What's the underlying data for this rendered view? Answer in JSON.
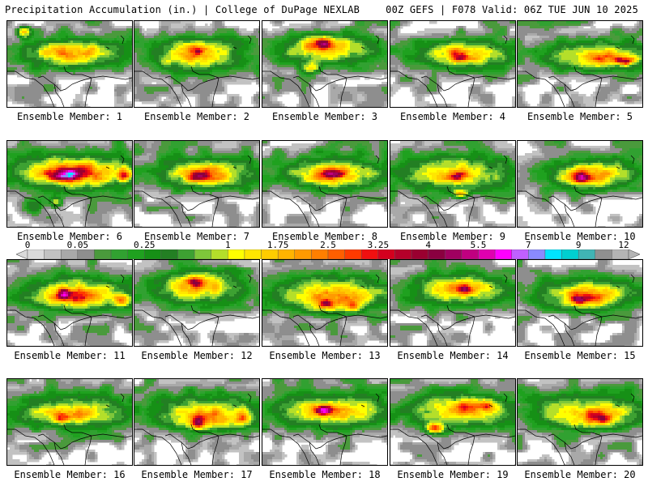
{
  "header": {
    "title": "Precipitation Accumulation (in.) | College of DuPage NEXLAB",
    "run_info": "00Z GEFS | F078 Valid: 06Z TUE JUN 10 2025"
  },
  "panel_label_prefix": "Ensemble Member: ",
  "members": [
    {
      "id": 1,
      "rain": [
        [
          0.55,
          0.35,
          0.42,
          0.16,
          0.5
        ],
        [
          0.5,
          0.38,
          0.32,
          0.12,
          0.78
        ],
        [
          0.45,
          0.36,
          0.17,
          0.08,
          1.3
        ],
        [
          0.13,
          0.12,
          0.04,
          0.05,
          1.9
        ],
        [
          0.68,
          0.3,
          0.04,
          0.04,
          1.1
        ]
      ]
    },
    {
      "id": 2,
      "rain": [
        [
          0.52,
          0.4,
          0.4,
          0.18,
          0.5
        ],
        [
          0.48,
          0.35,
          0.26,
          0.14,
          0.78
        ],
        [
          0.5,
          0.36,
          0.13,
          0.1,
          1.4
        ],
        [
          0.5,
          0.32,
          0.05,
          0.05,
          2.0
        ],
        [
          0.25,
          0.48,
          0.05,
          0.05,
          0.6
        ]
      ]
    },
    {
      "id": 3,
      "rain": [
        [
          0.55,
          0.35,
          0.42,
          0.16,
          0.5
        ],
        [
          0.48,
          0.3,
          0.28,
          0.13,
          0.85
        ],
        [
          0.46,
          0.26,
          0.15,
          0.08,
          1.6
        ],
        [
          0.48,
          0.25,
          0.06,
          0.05,
          2.7
        ],
        [
          0.38,
          0.52,
          0.06,
          0.06,
          1.4
        ]
      ]
    },
    {
      "id": 4,
      "rain": [
        [
          0.6,
          0.38,
          0.42,
          0.16,
          0.5
        ],
        [
          0.6,
          0.38,
          0.3,
          0.12,
          0.75
        ],
        [
          0.55,
          0.36,
          0.14,
          0.08,
          1.25
        ],
        [
          0.55,
          0.42,
          0.05,
          0.04,
          1.9
        ]
      ]
    },
    {
      "id": 5,
      "rain": [
        [
          0.62,
          0.38,
          0.42,
          0.16,
          0.5
        ],
        [
          0.66,
          0.4,
          0.3,
          0.12,
          0.8
        ],
        [
          0.7,
          0.42,
          0.16,
          0.07,
          1.45
        ],
        [
          0.85,
          0.45,
          0.07,
          0.04,
          2.6
        ]
      ]
    },
    {
      "id": 6,
      "rain": [
        [
          0.55,
          0.35,
          0.5,
          0.2,
          0.55
        ],
        [
          0.55,
          0.35,
          0.38,
          0.16,
          0.9
        ],
        [
          0.52,
          0.36,
          0.24,
          0.1,
          1.9
        ],
        [
          0.45,
          0.38,
          0.12,
          0.06,
          3.8
        ],
        [
          0.92,
          0.38,
          0.05,
          0.06,
          2.9
        ],
        [
          0.2,
          0.75,
          0.08,
          0.08,
          0.55
        ],
        [
          0.38,
          0.7,
          0.04,
          0.05,
          1.1
        ]
      ]
    },
    {
      "id": 7,
      "rain": [
        [
          0.6,
          0.35,
          0.42,
          0.17,
          0.5
        ],
        [
          0.58,
          0.38,
          0.3,
          0.13,
          0.8
        ],
        [
          0.56,
          0.38,
          0.16,
          0.08,
          1.5
        ],
        [
          0.5,
          0.4,
          0.06,
          0.05,
          2.0
        ]
      ]
    },
    {
      "id": 8,
      "rain": [
        [
          0.6,
          0.35,
          0.42,
          0.18,
          0.5
        ],
        [
          0.55,
          0.38,
          0.3,
          0.13,
          0.82
        ],
        [
          0.55,
          0.38,
          0.16,
          0.08,
          1.6
        ],
        [
          0.55,
          0.38,
          0.07,
          0.05,
          2.5
        ]
      ]
    },
    {
      "id": 9,
      "rain": [
        [
          0.5,
          0.35,
          0.45,
          0.2,
          0.5
        ],
        [
          0.5,
          0.36,
          0.32,
          0.14,
          0.8
        ],
        [
          0.52,
          0.4,
          0.14,
          0.08,
          1.4
        ],
        [
          0.52,
          0.4,
          0.05,
          0.04,
          2.7
        ],
        [
          0.55,
          0.6,
          0.05,
          0.04,
          1.6
        ]
      ]
    },
    {
      "id": 10,
      "rain": [
        [
          0.6,
          0.35,
          0.38,
          0.16,
          0.5
        ],
        [
          0.58,
          0.38,
          0.28,
          0.13,
          0.8
        ],
        [
          0.55,
          0.4,
          0.15,
          0.08,
          1.5
        ],
        [
          0.5,
          0.42,
          0.06,
          0.05,
          2.1
        ]
      ]
    },
    {
      "id": 11,
      "rain": [
        [
          0.55,
          0.35,
          0.45,
          0.18,
          0.5
        ],
        [
          0.55,
          0.4,
          0.33,
          0.14,
          0.85
        ],
        [
          0.55,
          0.42,
          0.2,
          0.09,
          1.6
        ],
        [
          0.45,
          0.38,
          0.05,
          0.05,
          2.7
        ],
        [
          0.9,
          0.45,
          0.06,
          0.06,
          1.6
        ]
      ]
    },
    {
      "id": 12,
      "rain": [
        [
          0.5,
          0.32,
          0.38,
          0.2,
          0.5
        ],
        [
          0.5,
          0.3,
          0.26,
          0.14,
          0.75
        ],
        [
          0.48,
          0.26,
          0.14,
          0.1,
          1.3
        ],
        [
          0.48,
          0.24,
          0.05,
          0.05,
          2.6
        ]
      ]
    },
    {
      "id": 13,
      "rain": [
        [
          0.55,
          0.35,
          0.48,
          0.2,
          0.55
        ],
        [
          0.55,
          0.4,
          0.34,
          0.15,
          0.9
        ],
        [
          0.55,
          0.45,
          0.2,
          0.1,
          1.6
        ],
        [
          0.5,
          0.5,
          0.07,
          0.05,
          2.1
        ],
        [
          0.72,
          0.52,
          0.05,
          0.05,
          1.7
        ]
      ]
    },
    {
      "id": 14,
      "rain": [
        [
          0.55,
          0.35,
          0.4,
          0.17,
          0.5
        ],
        [
          0.56,
          0.32,
          0.28,
          0.13,
          0.8
        ],
        [
          0.55,
          0.3,
          0.16,
          0.08,
          1.4
        ],
        [
          0.6,
          0.32,
          0.05,
          0.04,
          1.9
        ]
      ]
    },
    {
      "id": 15,
      "rain": [
        [
          0.6,
          0.35,
          0.42,
          0.16,
          0.5
        ],
        [
          0.58,
          0.4,
          0.3,
          0.13,
          0.8
        ],
        [
          0.55,
          0.42,
          0.17,
          0.09,
          1.5
        ],
        [
          0.48,
          0.45,
          0.06,
          0.05,
          2.5
        ]
      ]
    },
    {
      "id": 16,
      "rain": [
        [
          0.55,
          0.35,
          0.46,
          0.2,
          0.5
        ],
        [
          0.52,
          0.38,
          0.32,
          0.12,
          0.78
        ],
        [
          0.45,
          0.4,
          0.17,
          0.07,
          1.3
        ],
        [
          0.42,
          0.44,
          0.05,
          0.04,
          2.0
        ]
      ]
    },
    {
      "id": 17,
      "rain": [
        [
          0.55,
          0.35,
          0.45,
          0.2,
          0.5
        ],
        [
          0.58,
          0.4,
          0.32,
          0.13,
          0.8
        ],
        [
          0.6,
          0.45,
          0.2,
          0.09,
          1.4
        ],
        [
          0.5,
          0.5,
          0.05,
          0.05,
          2.3
        ],
        [
          0.85,
          0.45,
          0.06,
          0.08,
          1.4
        ]
      ]
    },
    {
      "id": 18,
      "rain": [
        [
          0.55,
          0.35,
          0.46,
          0.2,
          0.5
        ],
        [
          0.55,
          0.36,
          0.34,
          0.13,
          0.8
        ],
        [
          0.55,
          0.35,
          0.2,
          0.08,
          1.4
        ],
        [
          0.48,
          0.35,
          0.06,
          0.05,
          2.8
        ]
      ]
    },
    {
      "id": 19,
      "rain": [
        [
          0.55,
          0.35,
          0.45,
          0.2,
          0.5
        ],
        [
          0.58,
          0.36,
          0.32,
          0.14,
          0.8
        ],
        [
          0.62,
          0.32,
          0.18,
          0.08,
          1.4
        ],
        [
          0.35,
          0.55,
          0.06,
          0.06,
          2.3
        ],
        [
          0.75,
          0.3,
          0.05,
          0.05,
          1.6
        ]
      ]
    },
    {
      "id": 20,
      "rain": [
        [
          0.55,
          0.35,
          0.45,
          0.2,
          0.5
        ],
        [
          0.58,
          0.38,
          0.33,
          0.14,
          0.8
        ],
        [
          0.6,
          0.42,
          0.2,
          0.09,
          1.4
        ],
        [
          0.68,
          0.45,
          0.06,
          0.05,
          2.0
        ]
      ]
    }
  ],
  "colorbar": {
    "labels": [
      {
        "text": "0",
        "value": 0
      },
      {
        "text": "0.05",
        "value": 0.05
      },
      {
        "text": "0.25",
        "value": 0.25
      },
      {
        "text": "1",
        "value": 1
      },
      {
        "text": "1.75",
        "value": 1.75
      },
      {
        "text": "2.5",
        "value": 2.5
      },
      {
        "text": "3.25",
        "value": 3.25
      },
      {
        "text": "4",
        "value": 4
      },
      {
        "text": "5.5",
        "value": 5.5
      },
      {
        "text": "7",
        "value": 7
      },
      {
        "text": "9",
        "value": 9
      },
      {
        "text": "12",
        "value": 12
      }
    ],
    "levels": [
      0,
      0.01,
      0.03,
      0.05,
      0.1,
      0.15,
      0.2,
      0.25,
      0.35,
      0.5,
      0.65,
      0.75,
      1,
      1.25,
      1.5,
      1.75,
      2,
      2.25,
      2.5,
      2.75,
      3,
      3.25,
      3.5,
      3.75,
      4,
      4.5,
      5,
      5.5,
      6,
      6.5,
      7,
      7.5,
      8,
      9,
      10,
      11,
      12
    ],
    "colors": [
      "#dadada",
      "#c2c2c2",
      "#a9a9a9",
      "#8e8e8e",
      "#4a9a3c",
      "#31a131",
      "#1fa11f",
      "#169016",
      "#237f23",
      "#3da132",
      "#7ec73a",
      "#b4df2a",
      "#ffff00",
      "#ffe600",
      "#ffcc00",
      "#ffb400",
      "#ff9a00",
      "#ff7f00",
      "#ff5f00",
      "#ff3a00",
      "#f01010",
      "#d4001e",
      "#b5002a",
      "#9a0030",
      "#8a0040",
      "#a00060",
      "#c00080",
      "#e000b0",
      "#ff00ff",
      "#c060ff",
      "#8a8aff",
      "#00e4ff",
      "#00cfd0",
      "#40b4b4",
      "#909090",
      "#b4b4b4"
    ]
  }
}
